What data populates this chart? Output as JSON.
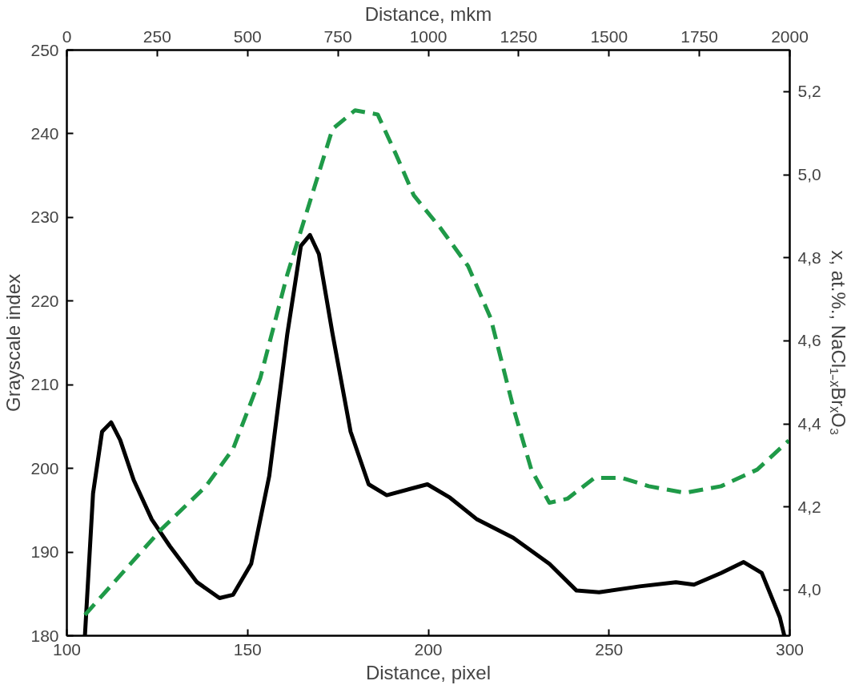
{
  "chart_data": {
    "type": "line",
    "xlabel": "Distance, pixel",
    "ylabel": "Grayscale index",
    "y2label": "x, at.%., NaCl₁₋ₓBrₓO₃",
    "x2label": "Distance, mkm",
    "xlim": [
      100,
      300
    ],
    "xticks": [
      100,
      150,
      200,
      250,
      300
    ],
    "ylim": [
      180,
      250
    ],
    "yticks": [
      180,
      190,
      200,
      210,
      220,
      230,
      240,
      250
    ],
    "y2lim": [
      3.89,
      5.3
    ],
    "y2ticks": [
      {
        "value": 4.0,
        "label": "4,0"
      },
      {
        "value": 4.2,
        "label": "4,2"
      },
      {
        "value": 4.4,
        "label": "4,4"
      },
      {
        "value": 4.6,
        "label": "4,6"
      },
      {
        "value": 4.8,
        "label": "4,8"
      },
      {
        "value": 5.0,
        "label": "5,0"
      },
      {
        "value": 5.2,
        "label": "5,2"
      }
    ],
    "x2lim": [
      0,
      2000
    ],
    "x2ticks": [
      0,
      250,
      500,
      750,
      1000,
      1250,
      1500,
      1750,
      2000
    ],
    "grid": false,
    "marker": "none",
    "series": [
      {
        "color": "#000000",
        "line_style": "solid",
        "axis": "y",
        "x": [
          105,
          107.25,
          109.75,
          112.25,
          114.75,
          118.5,
          123.5,
          128.5,
          136,
          142.25,
          146,
          151,
          156,
          161,
          164.75,
          167.25,
          169.75,
          173.5,
          178.5,
          183.5,
          188.5,
          199.75,
          206,
          213.5,
          223.5,
          233.5,
          241,
          247.25,
          258.5,
          268.5,
          273.5,
          281,
          287.25,
          292.25,
          297.25,
          298.5
        ],
        "values": [
          180,
          197,
          204.4,
          205.5,
          203.4,
          198.6,
          193.9,
          190.7,
          186.4,
          184.5,
          184.9,
          188.6,
          199.1,
          216.1,
          226.6,
          227.9,
          225.6,
          216.1,
          204.4,
          198.1,
          196.8,
          198.1,
          196.5,
          193.9,
          191.7,
          188.6,
          185.4,
          185.2,
          185.9,
          186.4,
          186.1,
          187.5,
          188.8,
          187.5,
          182.2,
          180
        ]
      },
      {
        "color": "#1f9a48",
        "line_style": "dashed",
        "axis": "y2",
        "x": [
          105,
          126,
          138.5,
          146,
          153.5,
          161,
          168.5,
          173.5,
          179.75,
          186,
          191,
          196,
          203.5,
          211,
          217.25,
          223.5,
          228.5,
          233.5,
          238.5,
          246,
          253.5,
          261,
          271,
          281,
          291,
          299.75
        ],
        "values": [
          3.94,
          4.145,
          4.25,
          4.34,
          4.51,
          4.76,
          4.97,
          5.11,
          5.155,
          5.145,
          5.05,
          4.95,
          4.87,
          4.78,
          4.655,
          4.44,
          4.29,
          4.21,
          4.22,
          4.27,
          4.27,
          4.25,
          4.234,
          4.25,
          4.29,
          4.36
        ]
      }
    ]
  }
}
